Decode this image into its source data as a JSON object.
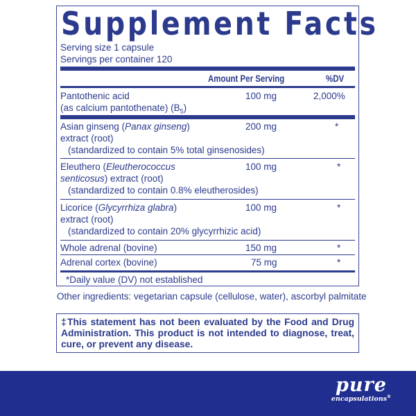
{
  "title": "Supplement Facts",
  "serving_size": "Serving size  1 capsule",
  "servings_per_container": "Servings per container  120",
  "header": {
    "amount": "Amount Per Serving",
    "dv": "%DV"
  },
  "rows": [
    {
      "l1": "Pantothenic acid",
      "l2": "(as calcium pantothenate) (B",
      "l2sub": "5",
      "l2end": ")",
      "amount": "100 mg",
      "dv": "2,000%"
    },
    {
      "l1a": "Asian ginseng (",
      "l1i": "Panax ginseng",
      "l1b": ")",
      "l2": "extract (root)",
      "l3": "(standardized to contain 5% total ginsenosides)",
      "amount": "200 mg",
      "dv": "*"
    },
    {
      "l1a": "Eleuthero (",
      "l1i": "Eleutherococcus",
      "l2i": "senticosus",
      "l2": ") extract (root)",
      "l3": "(standardized to contain 0.8% eleutherosides)",
      "amount": "100 mg",
      "dv": "*"
    },
    {
      "l1a": "Licorice (",
      "l1i": "Glycyrrhiza glabra",
      "l1b": ")",
      "l2": "extract (root)",
      "l3": "(standardized to contain 20% glycyrrhizic acid)",
      "amount": "100 mg",
      "dv": "*"
    },
    {
      "l1": "Whole adrenal (bovine)",
      "amount": "150 mg",
      "dv": "*"
    },
    {
      "l1": "Adrenal cortex (bovine)",
      "amount": "75 mg",
      "dv": "*"
    }
  ],
  "footnote": "*Daily value (DV) not established",
  "other_ingredients": "Other ingredients: vegetarian capsule (cellulose, water), ascorbyl palmitate",
  "statement": "‡This statement has not been evaluated by the Food and Drug Administration. This product is not intended to diagnose, treat, cure, or prevent any disease.",
  "brand": {
    "name": "pure",
    "sub": "encapsulations",
    "reg": "®"
  },
  "colors": {
    "navy": "#2b3a8c",
    "band": "#1f2e8f"
  }
}
